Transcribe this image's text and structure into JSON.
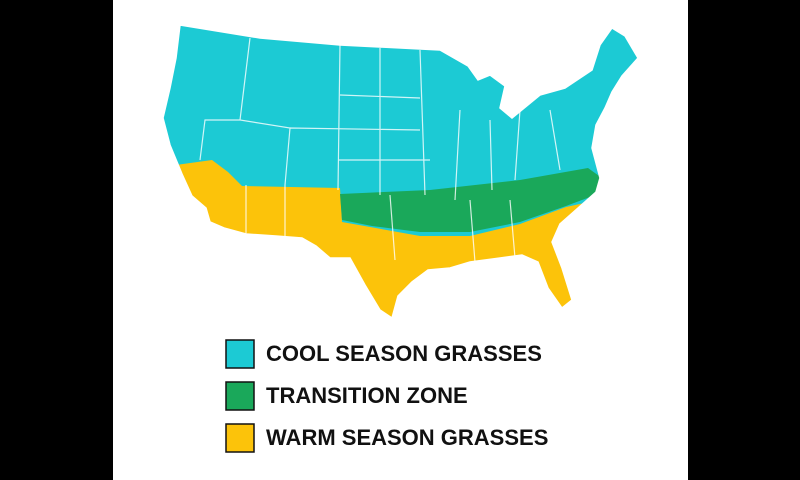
{
  "legend": [
    {
      "label": "COOL SEASON GRASSES",
      "color": "#1ccad4"
    },
    {
      "label": "TRANSITION ZONE",
      "color": "#1aa85a"
    },
    {
      "label": "WARM SEASON GRASSES",
      "color": "#fcc30a"
    }
  ]
}
